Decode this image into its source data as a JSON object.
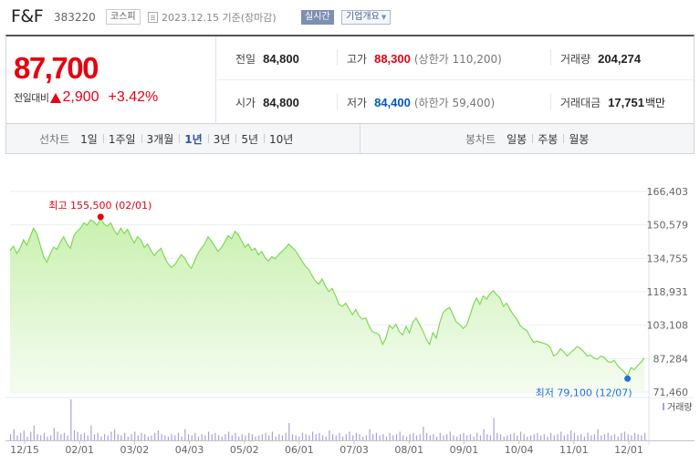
{
  "header": {
    "name": "F&F",
    "code": "383220",
    "market": "코스피",
    "date": "2023.12.15 기준(장마감)",
    "realtime_label": "실시간",
    "company_label": "기업개요"
  },
  "price": {
    "now": "87,700",
    "change_label": "전일대비",
    "change": "2,900",
    "change_pct": "+3.42%",
    "prev_close_label": "전일",
    "prev_close": "84,800",
    "open_label": "시가",
    "open": "84,800",
    "high_label": "고가",
    "high": "88,300",
    "upper_limit": "(상한가 110,200)",
    "low_label": "저가",
    "low": "84,400",
    "lower_limit": "(하한가 59,400)",
    "volume_label": "거래량",
    "volume": "204,274",
    "amount_label": "거래대금",
    "amount": "17,751",
    "amount_unit": "백만"
  },
  "periods": {
    "line_title": "선차트",
    "line_tabs": [
      "1일",
      "1주일",
      "3개월",
      "1년",
      "3년",
      "5년",
      "10년"
    ],
    "line_active": "1년",
    "candle_title": "봉차트",
    "candle_tabs": [
      "일봉",
      "주봉",
      "월봉"
    ]
  },
  "colors": {
    "up": "#e60012",
    "down": "#0058c5",
    "line": "#7ed957",
    "fill": "#c9f2b0",
    "volume": "#a9a3d6"
  },
  "chart_data": {
    "type": "area",
    "ylim": [
      71460,
      166403
    ],
    "y_ticks": [
      "166,403",
      "150,579",
      "134,755",
      "118,931",
      "103,108",
      "87,284",
      "71,460"
    ],
    "x_ticks": [
      "12/15",
      "02/01",
      "03/02",
      "04/03",
      "05/02",
      "06/01",
      "07/03",
      "08/01",
      "09/01",
      "10/04",
      "11/01",
      "12/01"
    ],
    "high_annotation": "최고 155,500 (02/01)",
    "low_annotation": "최저 79,100 (12/07)",
    "high_value": 155500,
    "low_value": 79100,
    "volume_label": "거래량",
    "values": [
      138500,
      140500,
      137000,
      139500,
      143500,
      141000,
      145000,
      149000,
      146500,
      141000,
      135500,
      133000,
      137000,
      140000,
      139000,
      142500,
      145000,
      141500,
      139500,
      145500,
      147500,
      149000,
      151500,
      150500,
      153000,
      152000,
      150500,
      153500,
      151000,
      150000,
      151500,
      148000,
      146000,
      149000,
      146500,
      148500,
      145000,
      142000,
      145000,
      143500,
      140000,
      141500,
      138500,
      136000,
      138000,
      139500,
      135500,
      132500,
      130500,
      131500,
      134000,
      136500,
      135000,
      132000,
      130000,
      133500,
      137000,
      139500,
      141500,
      145000,
      143000,
      140500,
      138000,
      140000,
      142500,
      145500,
      144000,
      147500,
      146000,
      143000,
      140000,
      141500,
      138500,
      139500,
      136500,
      138000,
      135000,
      133500,
      135500,
      134500,
      136500,
      138000,
      139500,
      141500,
      140000,
      138500,
      136000,
      133500,
      131000,
      129500,
      126500,
      124000,
      122500,
      125000,
      121500,
      119000,
      120500,
      117000,
      113000,
      112000,
      113500,
      111000,
      108000,
      110500,
      107500,
      106000,
      106500,
      102500,
      100000,
      99500,
      98500,
      94000,
      97000,
      103000,
      101500,
      103500,
      100000,
      98500,
      102500,
      99500,
      104500,
      106500,
      103500,
      100500,
      96500,
      94000,
      99500,
      97000,
      104000,
      109000,
      110500,
      111500,
      108000,
      104500,
      103500,
      101500,
      103000,
      107500,
      112500,
      116000,
      113000,
      117000,
      115500,
      118000,
      119500,
      117500,
      116000,
      112000,
      113500,
      110500,
      108000,
      106000,
      103000,
      101500,
      100500,
      97500,
      95000,
      95500,
      95000,
      94500,
      94000,
      92500,
      88500,
      89500,
      92000,
      90500,
      88500,
      90000,
      91500,
      93000,
      92000,
      90500,
      88500,
      89000,
      87500,
      87000,
      88500,
      88000,
      86000,
      85500,
      86500,
      84000,
      82500,
      81000,
      79100,
      83000,
      82000,
      84000,
      85500,
      87700
    ],
    "volumes": [
      5,
      9,
      4,
      6,
      8,
      3,
      7,
      12,
      5,
      4,
      6,
      3,
      4,
      10,
      7,
      5,
      6,
      4,
      33,
      8,
      7,
      5,
      6,
      4,
      12,
      5,
      6,
      3,
      5,
      4,
      7,
      9,
      5,
      4,
      6,
      3,
      5,
      7,
      4,
      6,
      5,
      3,
      4,
      6,
      8,
      5,
      4,
      3,
      5,
      4,
      6,
      3,
      9,
      5,
      4,
      6,
      3,
      5,
      4,
      7,
      5,
      6,
      4,
      3,
      5,
      7,
      4,
      6,
      3,
      5,
      4,
      6,
      5,
      3,
      4,
      5,
      6,
      4,
      7,
      3,
      5,
      4,
      6,
      14,
      5,
      4,
      3,
      6,
      5,
      4,
      7,
      5,
      6,
      4,
      3,
      8,
      5,
      4,
      6,
      3,
      5,
      7,
      4,
      6,
      5,
      3,
      4,
      9,
      5,
      6,
      4,
      5,
      3,
      6,
      4,
      5,
      7,
      4,
      3,
      5,
      6,
      4,
      5,
      11,
      6,
      4,
      5,
      3,
      6,
      4,
      5,
      7,
      4,
      3,
      5,
      6,
      4,
      5,
      3,
      6,
      4,
      9,
      5,
      4,
      18,
      6,
      5,
      3,
      4,
      5,
      6,
      4,
      7,
      5,
      3,
      4,
      5,
      6,
      4,
      5,
      3,
      6,
      4,
      5,
      7,
      4,
      5,
      8,
      6,
      4,
      5,
      3,
      6,
      4,
      5,
      9,
      4,
      5,
      6,
      4,
      5,
      3,
      6,
      7,
      5,
      4,
      6,
      5,
      4,
      6
    ]
  }
}
